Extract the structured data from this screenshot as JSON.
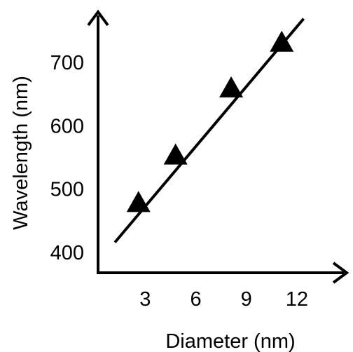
{
  "chart_data": {
    "type": "scatter",
    "title": "",
    "xlabel": "Diameter (nm)",
    "ylabel": "Wavelength  (nm)",
    "x_ticks": [
      3,
      6,
      9,
      12
    ],
    "y_ticks": [
      400,
      500,
      600,
      700
    ],
    "xlim": [
      0.2,
      14
    ],
    "ylim": [
      368,
      783
    ],
    "grid": false,
    "legend": "none",
    "series": [
      {
        "marker": "triangle",
        "x": [
          2.6,
          4.8,
          8.1,
          11.1
        ],
        "y": [
          476,
          551,
          657,
          729
        ]
      }
    ],
    "fit_line": {
      "x": [
        1.2,
        12.4
      ],
      "y": [
        416,
        769
      ]
    },
    "colors": {
      "marks": "#000000",
      "background": "#ffffff"
    }
  }
}
